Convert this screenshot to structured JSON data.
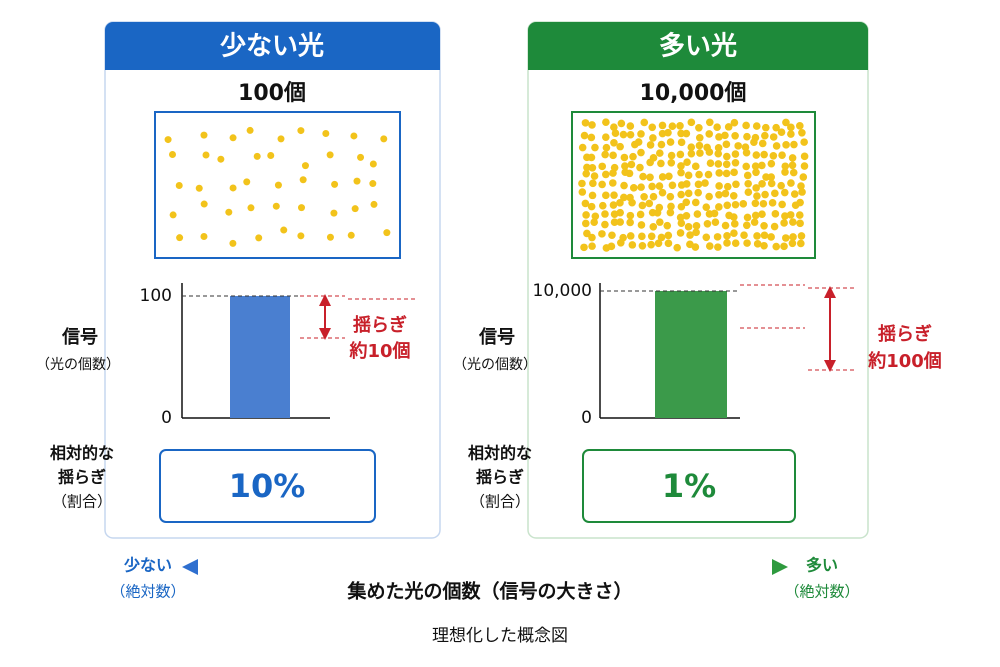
{
  "panels": [
    {
      "title": "少ない光",
      "count": "100個",
      "yticks": [
        "100",
        "0"
      ],
      "signal_label": "信号",
      "signal_sub": "（光の個数）",
      "fluct_label": "揺らぎ",
      "fluct_amount": "約10個",
      "relative_lines": [
        "相対的な",
        "揺らぎ",
        "（割合）"
      ],
      "percent": "10%"
    },
    {
      "title": "多い光",
      "count": "10,000個",
      "yticks": [
        "10,000",
        "0"
      ],
      "signal_label": "信号",
      "signal_sub": "（光の個数）",
      "fluct_label": "揺らぎ",
      "fluct_amount": "約100個",
      "relative_lines": [
        "相対的な",
        "揺らぎ",
        "（割合）"
      ],
      "percent": "1%"
    }
  ],
  "axis": {
    "left": "少ない",
    "left_sub": "（絶対数）",
    "center": "集めた光の個数（信号の大きさ）",
    "right": "多い",
    "right_sub": "（絶対数）"
  },
  "caption": "理想化した概念図"
}
